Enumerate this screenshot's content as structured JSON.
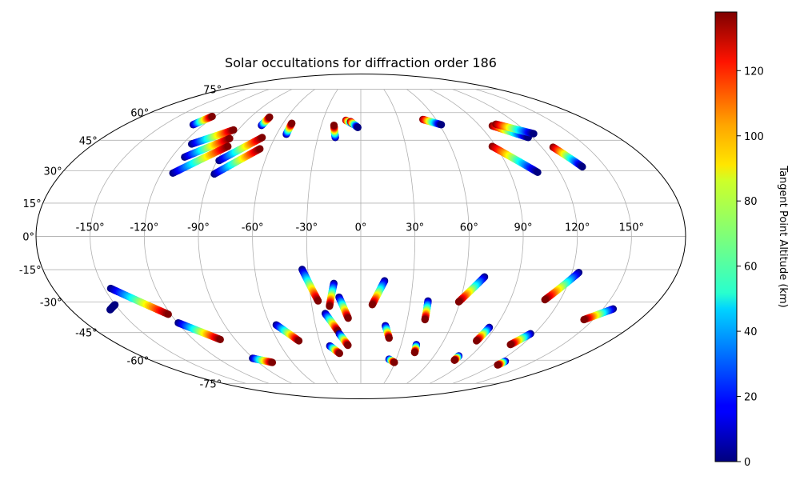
{
  "chart_data": {
    "type": "scatter",
    "projection": "mollweide",
    "title": "Solar occultations for diffraction order 186",
    "xlabel": "",
    "ylabel": "",
    "lon_range": [
      -180,
      180
    ],
    "lat_range": [
      -90,
      90
    ],
    "lon_ticks": [
      -150,
      -120,
      -90,
      -60,
      -30,
      0,
      30,
      60,
      90,
      120,
      150
    ],
    "lat_ticks": [
      -75,
      -60,
      -45,
      -30,
      -15,
      0,
      15,
      30,
      45,
      60,
      75
    ],
    "lon_tick_labels": [
      "-150°",
      "-120°",
      "-90°",
      "-60°",
      "-30°",
      "0°",
      "30°",
      "60°",
      "90°",
      "120°",
      "150°"
    ],
    "lat_tick_labels": [
      "-75°",
      "-60°",
      "-45°",
      "-30°",
      "-15°",
      "0°",
      "15°",
      "30°",
      "45°",
      "60°",
      "75°"
    ],
    "grid": true,
    "colormap": "jet",
    "colorbar": {
      "label": "Tangent Point Altitude (km)",
      "range": [
        0,
        138
      ],
      "ticks": [
        0,
        20,
        40,
        60,
        80,
        100,
        120
      ],
      "tick_labels": [
        "0",
        "20",
        "40",
        "60",
        "80",
        "100",
        "120"
      ]
    },
    "tracks": [
      {
        "lon_start": -128.0,
        "lat_start": 53.2,
        "lon_end": -122.2,
        "lat_end": 57.8,
        "alt_start": 0,
        "alt_end": 138
      },
      {
        "lon_start": -114.0,
        "lat_start": 43.1,
        "lon_end": -93.4,
        "lat_end": 50.4,
        "alt_start": 0,
        "alt_end": 138
      },
      {
        "lon_start": -111.9,
        "lat_start": 36.6,
        "lon_end": -91.1,
        "lat_end": 45.9,
        "alt_start": 0,
        "alt_end": 138
      },
      {
        "lon_start": -113.1,
        "lat_start": 28.9,
        "lon_end": -88.5,
        "lat_end": 41.9,
        "alt_start": 0,
        "alt_end": 138
      },
      {
        "lon_start": -88.8,
        "lat_start": 34.9,
        "lon_end": -68.9,
        "lat_end": 46.4,
        "alt_start": 0,
        "alt_end": 138
      },
      {
        "lon_start": -87.9,
        "lat_start": 28.5,
        "lon_end": -66.4,
        "lat_end": 40.7,
        "alt_start": 0,
        "alt_end": 138
      },
      {
        "lon_start": -75.4,
        "lat_start": 52.8,
        "lon_end": -74.5,
        "lat_end": 57.4,
        "alt_start": 0,
        "alt_end": 138
      },
      {
        "lon_start": -53.1,
        "lat_start": 48.1,
        "lon_end": -53.3,
        "lat_end": 54.0,
        "alt_start": 0,
        "alt_end": 138
      },
      {
        "lon_start": -17.8,
        "lat_start": 46.4,
        "lon_end": -20.4,
        "lat_end": 52.9,
        "alt_start": 0,
        "alt_end": 138
      },
      {
        "lon_start": -11.8,
        "lat_start": 55.6,
        "lon_end": -5.6,
        "lat_end": 53.4,
        "alt_start": 138,
        "alt_end": 0
      },
      {
        "lon_start": -8.0,
        "lat_start": 54.9,
        "lon_end": -2.2,
        "lat_end": 51.7,
        "alt_start": 138,
        "alt_end": 0
      },
      {
        "lon_start": 49.6,
        "lat_start": 56.1,
        "lon_end": 61.5,
        "lat_end": 53.2,
        "alt_start": 138,
        "alt_end": 0
      },
      {
        "lon_start": 99.5,
        "lat_start": 52.6,
        "lon_end": 117.0,
        "lat_end": 46.4,
        "alt_start": 138,
        "alt_end": 0
      },
      {
        "lon_start": 103.6,
        "lat_start": 53.5,
        "lon_end": 123.7,
        "lat_end": 48.4,
        "alt_start": 138,
        "alt_end": 0
      },
      {
        "lon_start": 87.5,
        "lat_start": 41.9,
        "lon_end": 106.7,
        "lat_end": 29.3,
        "alt_start": 138,
        "alt_end": 0
      },
      {
        "lon_start": 127.5,
        "lat_start": 41.5,
        "lon_end": 135.9,
        "lat_end": 31.9,
        "alt_start": 138,
        "alt_end": 0
      },
      {
        "lon_start": -155.7,
        "lat_start": -33.7,
        "lon_end": -150.2,
        "lat_end": -31.3,
        "alt_start": 0,
        "alt_end": 0
      },
      {
        "lon_start": -146.3,
        "lat_start": -23.6,
        "lon_end": -121.6,
        "lat_end": -35.9,
        "alt_start": 0,
        "alt_end": 138
      },
      {
        "lon_start": -119.5,
        "lat_start": -40.1,
        "lon_end": -100.8,
        "lat_end": -48.6,
        "alt_start": 0,
        "alt_end": 138
      },
      {
        "lon_start": -90.8,
        "lat_start": -58.9,
        "lon_end": -77.7,
        "lat_end": -61.3,
        "alt_start": 0,
        "alt_end": 138
      },
      {
        "lon_start": -55.9,
        "lat_start": -41.1,
        "lon_end": -44.8,
        "lat_end": -49.3,
        "alt_start": 0,
        "alt_end": 138
      },
      {
        "lon_start": -33.2,
        "lat_start": -14.9,
        "lon_end": -25.8,
        "lat_end": -29.5,
        "alt_start": 0,
        "alt_end": 138
      },
      {
        "lon_start": -15.6,
        "lat_start": -21.3,
        "lon_end": -19.2,
        "lat_end": -32.0,
        "alt_start": 0,
        "alt_end": 138
      },
      {
        "lon_start": -13.0,
        "lat_start": -27.7,
        "lon_end": -8.1,
        "lat_end": -37.8,
        "alt_start": 0,
        "alt_end": 138
      },
      {
        "lon_start": -22.4,
        "lat_start": -35.5,
        "lon_end": -15.6,
        "lat_end": -44.2,
        "alt_start": 0,
        "alt_end": 138
      },
      {
        "lon_start": -14.9,
        "lat_start": -45.6,
        "lon_end": -9.6,
        "lat_end": -51.7,
        "alt_start": 0,
        "alt_end": 138
      },
      {
        "lon_start": -23.3,
        "lat_start": -52.0,
        "lon_end": -17.0,
        "lat_end": -56.1,
        "alt_start": 0,
        "alt_end": 138
      },
      {
        "lon_start": 13.7,
        "lat_start": -20.1,
        "lon_end": 7.0,
        "lat_end": -31.3,
        "alt_start": 0,
        "alt_end": 138
      },
      {
        "lon_start": 16.3,
        "lat_start": -41.5,
        "lon_end": 20.1,
        "lat_end": -47.9,
        "alt_start": 0,
        "alt_end": 138
      },
      {
        "lon_start": 23.9,
        "lat_start": -59.4,
        "lon_end": 29.5,
        "lat_end": -61.3,
        "alt_start": 0,
        "alt_end": 138
      },
      {
        "lon_start": 40.6,
        "lat_start": -29.5,
        "lon_end": 41.4,
        "lat_end": -38.5,
        "alt_start": 0,
        "alt_end": 138
      },
      {
        "lon_start": 41.3,
        "lat_start": -51.3,
        "lon_end": 42.7,
        "lat_end": -55.6,
        "alt_start": 0,
        "alt_end": 138
      },
      {
        "lon_start": 70.8,
        "lat_start": -18.3,
        "lon_end": 59.3,
        "lat_end": -29.9,
        "alt_start": 0,
        "alt_end": 138
      },
      {
        "lon_start": 86.0,
        "lat_start": -42.4,
        "lon_end": 83.7,
        "lat_end": -49.3,
        "alt_start": 0,
        "alt_end": 138
      },
      {
        "lon_start": 80.2,
        "lat_start": -57.5,
        "lon_end": 80.2,
        "lat_end": -60.0,
        "alt_start": 0,
        "alt_end": 138
      },
      {
        "lon_start": 123.9,
        "lat_start": -16.3,
        "lon_end": 110.8,
        "lat_end": -28.9,
        "alt_start": 0,
        "alt_end": 138
      },
      {
        "lon_start": 117.5,
        "lat_start": -45.6,
        "lon_end": 111.2,
        "lat_end": -51.3,
        "alt_start": 0,
        "alt_end": 138
      },
      {
        "lon_start": 125.2,
        "lat_start": -60.6,
        "lon_end": 124.1,
        "lat_end": -62.8,
        "alt_start": 0,
        "alt_end": 138
      },
      {
        "lon_start": 156.3,
        "lat_start": -33.3,
        "lon_end": 144.0,
        "lat_end": -38.5,
        "alt_start": 0,
        "alt_end": 138
      }
    ]
  }
}
